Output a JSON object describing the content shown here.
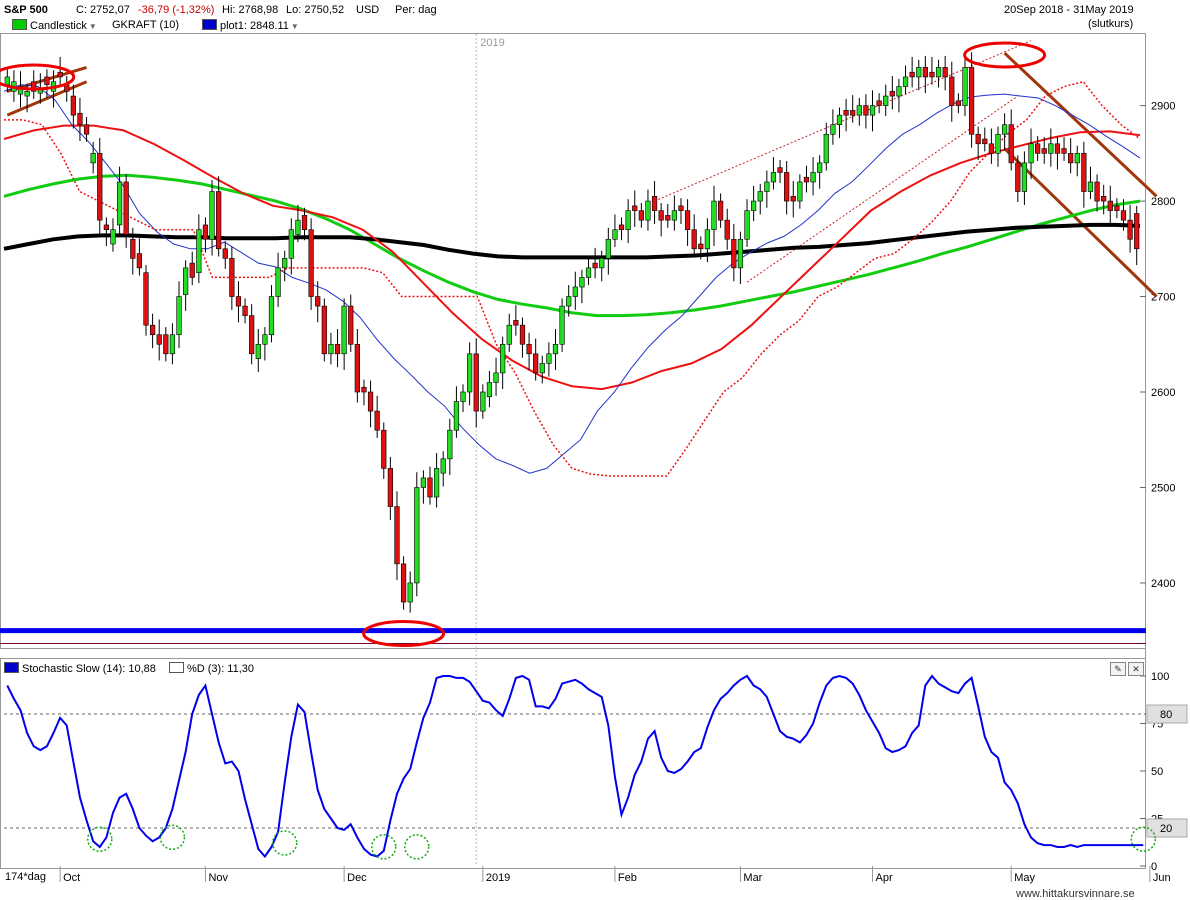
{
  "header": {
    "symbol": "S&P 500",
    "close": "C: 2752,07",
    "change": "-36,79 (-1,32%)",
    "high": "Hi: 2768,98",
    "low": "Lo: 2750,52",
    "currency": "USD",
    "period": "Per: dag",
    "date_range": "20Sep 2018 - 31May 2019",
    "mode": "(slutkurs)",
    "legend": [
      {
        "label": "Candlestick",
        "color": "#00cc00",
        "dropdown": true
      },
      {
        "label": "GKRAFT (10)",
        "color": "",
        "dropdown": false
      },
      {
        "label": "plot1: 2848.11",
        "color": "#0000cc",
        "dropdown": true
      }
    ]
  },
  "stoch_header": {
    "label": "Stochastic Slow (14): 10,88",
    "label2": "%D (3): 11,30",
    "color": "#0000cc"
  },
  "footer": {
    "bars_label": "174*dag",
    "watermark": "www.hittakursvinnare.se"
  },
  "chart_data": [
    {
      "type": "candlestick",
      "ylim": [
        2335,
        2975
      ],
      "yticks": [
        2400,
        2500,
        2600,
        2700,
        2800,
        2900
      ],
      "year_marker": "2019",
      "month_labels": [
        {
          "label": "Oct",
          "index": 8
        },
        {
          "label": "Nov",
          "index": 30
        },
        {
          "label": "Dec",
          "index": 51
        },
        {
          "label": "2019",
          "index": 72
        },
        {
          "label": "Feb",
          "index": 92
        },
        {
          "label": "Mar",
          "index": 111
        },
        {
          "label": "Apr",
          "index": 131
        },
        {
          "label": "May",
          "index": 152
        },
        {
          "label": "Jun",
          "index": 173
        }
      ],
      "close": [
        2930,
        2925,
        2920,
        2915,
        2915,
        2918,
        2922,
        2925,
        2930,
        2915,
        2890,
        2880,
        2870,
        2850,
        2780,
        2770,
        2770,
        2820,
        2765,
        2740,
        2730,
        2670,
        2660,
        2650,
        2640,
        2660,
        2700,
        2730,
        2720,
        2770,
        2760,
        2810,
        2750,
        2740,
        2700,
        2690,
        2680,
        2640,
        2650,
        2660,
        2700,
        2730,
        2740,
        2770,
        2780,
        2770,
        2700,
        2690,
        2640,
        2650,
        2640,
        2690,
        2650,
        2600,
        2600,
        2580,
        2560,
        2520,
        2480,
        2420,
        2380,
        2400,
        2500,
        2510,
        2490,
        2520,
        2530,
        2560,
        2590,
        2600,
        2640,
        2580,
        2600,
        2610,
        2620,
        2650,
        2670,
        2670,
        2650,
        2640,
        2620,
        2630,
        2640,
        2650,
        2690,
        2700,
        2710,
        2720,
        2730,
        2730,
        2740,
        2760,
        2770,
        2770,
        2790,
        2790,
        2780,
        2800,
        2790,
        2780,
        2780,
        2790,
        2790,
        2770,
        2750,
        2750,
        2770,
        2800,
        2780,
        2760,
        2730,
        2760,
        2790,
        2800,
        2810,
        2820,
        2830,
        2830,
        2800,
        2800,
        2820,
        2820,
        2830,
        2840,
        2870,
        2880,
        2890,
        2890,
        2890,
        2900,
        2890,
        2900,
        2900,
        2910,
        2910,
        2920,
        2930,
        2930,
        2940,
        2930,
        2930,
        2940,
        2930,
        2900,
        2900,
        2940,
        2870,
        2860,
        2860,
        2850,
        2870,
        2880,
        2840,
        2810,
        2840,
        2860,
        2850,
        2850,
        2860,
        2850,
        2850,
        2840,
        2850,
        2810,
        2820,
        2800,
        2800,
        2790,
        2790,
        2780,
        2760,
        2750
      ],
      "open_delta": [
        -8,
        -10,
        -8,
        -5,
        10,
        -5,
        8,
        -10,
        5,
        8,
        20,
        12,
        10,
        -10,
        70,
        5,
        -15,
        -45,
        55,
        20,
        15,
        55,
        10,
        10,
        20,
        -20,
        -40,
        -28,
        15,
        -45,
        15,
        -50,
        60,
        10,
        40,
        10,
        10,
        40,
        -15,
        -10,
        -40,
        -30,
        -10,
        -30,
        -15,
        15,
        70,
        10,
        50,
        -10,
        10,
        -50,
        40,
        50,
        5,
        20,
        20,
        40,
        40,
        60,
        40,
        -20,
        -100,
        -10,
        20,
        -30,
        -15,
        -30,
        -30,
        -10,
        -40,
        60,
        -20,
        -15,
        -10,
        -30,
        -20,
        5,
        20,
        10,
        20,
        -10,
        -10,
        -10,
        -40,
        -10,
        -10,
        -10,
        -10,
        5,
        -10,
        -20,
        -10,
        5,
        -20,
        5,
        10,
        -20,
        15,
        10,
        5,
        -10,
        5,
        20,
        20,
        5,
        -20,
        -30,
        20,
        20,
        30,
        -30,
        -30,
        -10,
        -10,
        -10,
        -10,
        5,
        30,
        5,
        -20,
        5,
        -10,
        -10,
        -30,
        -10,
        -10,
        5,
        5,
        -10,
        10,
        -10,
        5,
        -10,
        5,
        -10,
        -10,
        5,
        -10,
        10,
        5,
        -10,
        10,
        30,
        5,
        -40,
        70,
        10,
        5,
        10,
        -20,
        -10,
        40,
        30,
        -30,
        -20,
        10,
        5,
        -10,
        10,
        5,
        10,
        -10,
        40,
        -10,
        20,
        5,
        10,
        5,
        10,
        20,
        37
      ],
      "ma_green_200": [
        2805,
        2812,
        2818,
        2823,
        2826,
        2827,
        2825,
        2822,
        2818,
        2812,
        2806,
        2800,
        2792,
        2782,
        2770,
        2755,
        2740,
        2727,
        2715,
        2705,
        2697,
        2692,
        2688,
        2683,
        2680,
        2680,
        2681,
        2683,
        2686,
        2690,
        2695,
        2700,
        2705,
        2711,
        2717,
        2723,
        2730,
        2737,
        2745,
        2752,
        2760,
        2768,
        2776,
        2783,
        2790,
        2796,
        2800
      ],
      "ma_black": [
        2750,
        2755,
        2760,
        2763,
        2764,
        2764,
        2763,
        2762,
        2762,
        2761,
        2761,
        2761,
        2762,
        2762,
        2762,
        2760,
        2757,
        2754,
        2749,
        2745,
        2742,
        2741,
        2741,
        2741,
        2741,
        2741,
        2741,
        2742,
        2743,
        2745,
        2747,
        2749,
        2751,
        2752,
        2754,
        2756,
        2759,
        2762,
        2765,
        2768,
        2770,
        2772,
        2773,
        2774,
        2775,
        2775,
        2774
      ],
      "ma_red_50": [
        2865,
        2874,
        2879,
        2879,
        2874,
        2860,
        2843,
        2825,
        2808,
        2795,
        2790,
        2783,
        2770,
        2747,
        2715,
        2683,
        2655,
        2633,
        2616,
        2606,
        2603,
        2610,
        2622,
        2630,
        2645,
        2670,
        2700,
        2730,
        2760,
        2790,
        2810,
        2827,
        2840,
        2850,
        2858,
        2866,
        2872,
        2873,
        2869
      ],
      "ma_blue_20": [
        2915,
        2922,
        2920,
        2906,
        2880,
        2862,
        2840,
        2817,
        2787,
        2768,
        2755,
        2750,
        2750,
        2757,
        2746,
        2735,
        2731,
        2720,
        2714,
        2707,
        2695,
        2678,
        2655,
        2635,
        2618,
        2600,
        2585,
        2563,
        2545,
        2530,
        2523,
        2515,
        2520,
        2535,
        2550,
        2580,
        2600,
        2625,
        2647,
        2665,
        2680,
        2700,
        2720,
        2735,
        2746,
        2756,
        2763,
        2775,
        2790,
        2808,
        2820,
        2837,
        2855,
        2870,
        2880,
        2892,
        2902,
        2909,
        2911,
        2912,
        2910,
        2908,
        2900,
        2890,
        2880,
        2868,
        2857,
        2845
      ],
      "stop_red_dotted": [
        2885,
        2885,
        2880,
        2850,
        2810,
        2800,
        2790,
        2780,
        2770,
        2770,
        2770,
        2720,
        2720,
        2720,
        2720,
        2730,
        2730,
        2730,
        2730,
        2730,
        2725,
        2700,
        2700,
        2700,
        2700,
        2700,
        2650,
        2620,
        2580,
        2545,
        2520,
        2514,
        2512,
        2512,
        2512,
        2512,
        2540,
        2570,
        2600,
        2615,
        2640,
        2660,
        2675,
        2700,
        2710,
        2725,
        2740,
        2745,
        2760,
        2778,
        2800,
        2830,
        2850,
        2870,
        2885,
        2910,
        2920,
        2925,
        2900,
        2880,
        2865
      ],
      "support_line": 2350,
      "support_line2": 2345,
      "annotations": [
        {
          "type": "ellipse",
          "index": 4,
          "value": 2930
        },
        {
          "type": "ellipse",
          "index": 60,
          "value": 2347
        },
        {
          "type": "ellipse",
          "index": 151,
          "value": 2953
        }
      ]
    },
    {
      "type": "line",
      "name": "Stochastic Slow (14)",
      "ylim": [
        0,
        100
      ],
      "yticks": [
        0,
        25,
        50,
        75,
        100
      ],
      "levels": [
        80,
        20
      ],
      "level_labels": [
        "80",
        "20"
      ],
      "values": [
        95,
        88,
        82,
        70,
        63,
        61,
        63,
        70,
        78,
        74,
        55,
        36,
        24,
        13,
        10,
        15,
        28,
        36,
        38,
        30,
        20,
        16,
        13,
        15,
        20,
        30,
        45,
        60,
        80,
        90,
        95,
        80,
        65,
        54,
        55,
        50,
        35,
        22,
        9,
        5,
        10,
        18,
        44,
        68,
        85,
        81,
        60,
        40,
        30,
        25,
        20,
        19,
        22,
        15,
        9,
        6,
        5,
        8,
        24,
        38,
        46,
        51,
        65,
        78,
        86,
        99,
        100,
        100,
        99,
        99,
        97,
        92,
        87,
        86,
        82,
        79,
        88,
        99,
        100,
        98,
        84,
        84,
        83,
        88,
        96,
        97,
        98,
        96,
        93,
        91,
        89,
        74,
        47,
        27,
        36,
        48,
        55,
        67,
        71,
        57,
        50,
        49,
        51,
        55,
        60,
        62,
        73,
        82,
        88,
        91,
        95,
        98,
        100,
        95,
        93,
        89,
        80,
        71,
        68,
        67,
        65,
        69,
        75,
        86,
        95,
        99,
        100,
        99,
        96,
        90,
        82,
        76,
        70,
        62,
        60,
        61,
        63,
        70,
        74,
        95,
        100,
        96,
        94,
        92,
        91,
        96,
        99,
        84,
        68,
        60,
        57,
        44,
        40,
        33,
        22,
        15,
        12,
        11,
        11,
        10,
        10,
        11,
        10,
        11,
        11,
        11,
        11,
        11,
        11,
        11,
        11,
        11,
        11
      ]
    }
  ]
}
